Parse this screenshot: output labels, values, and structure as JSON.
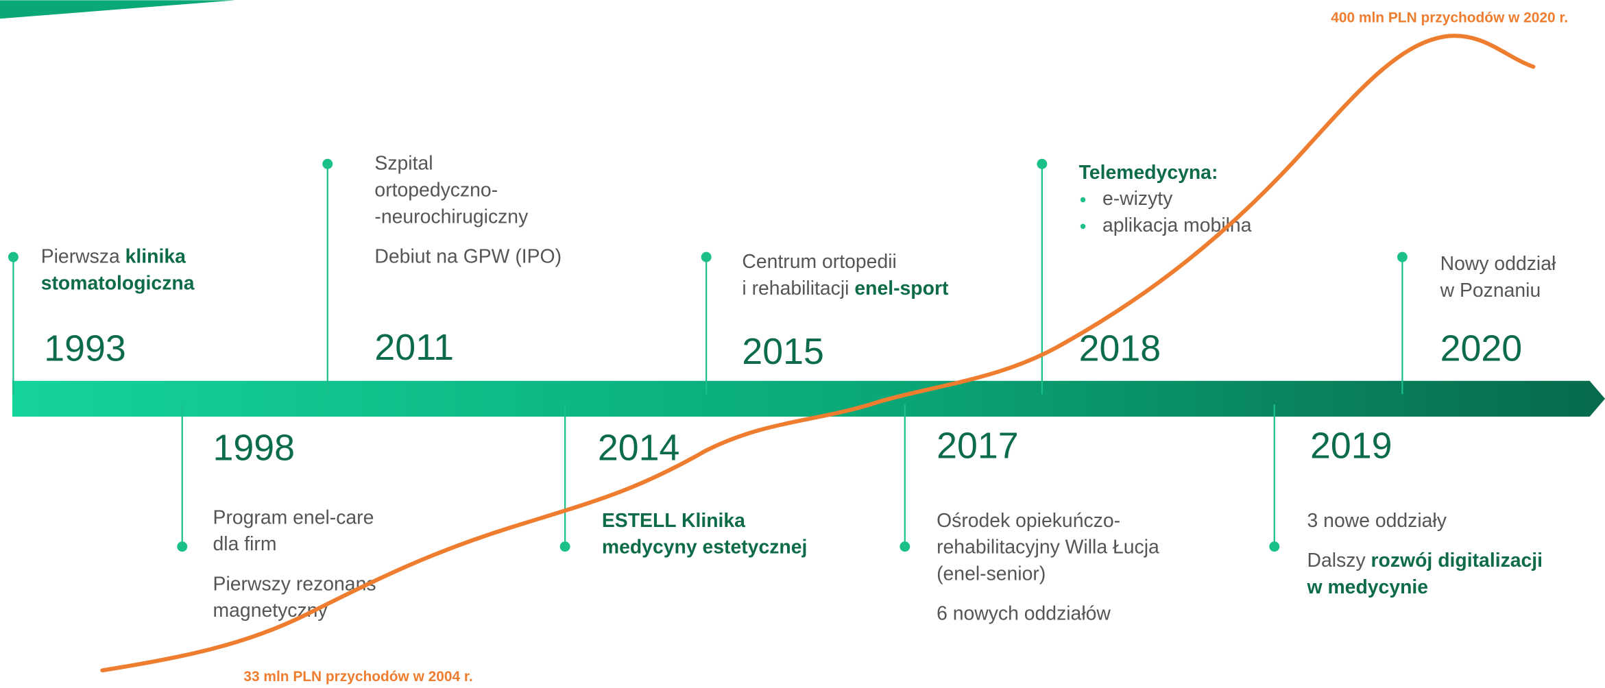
{
  "events": [
    {
      "year": "1993",
      "paragraphs": [
        [
          [
            "Pierwsza ",
            {
              "text": "klinika",
              "strong": true
            }
          ],
          [
            {
              "text": "stomatologiczna",
              "strong": true
            }
          ]
        ]
      ]
    },
    {
      "year": "1998",
      "paragraphs": [
        [
          [
            "Program enel-care"
          ],
          [
            "dla firm"
          ]
        ],
        [
          [
            "Pierwszy rezonans"
          ],
          [
            "magnetyczny"
          ]
        ]
      ]
    },
    {
      "year": "2011",
      "paragraphs": [
        [
          [
            "Szpital"
          ],
          [
            "ortopedyczno-"
          ],
          [
            "-neurochirugiczny"
          ]
        ],
        [
          [
            "Debiut na GPW (IPO)"
          ]
        ]
      ]
    },
    {
      "year": "2014",
      "paragraphs": [
        [
          [
            {
              "text": "ESTELL Klinika",
              "strong": true
            }
          ],
          [
            {
              "text": "medycyny estetycznej",
              "strong": true
            }
          ]
        ]
      ]
    },
    {
      "year": "2015",
      "paragraphs": [
        [
          [
            "Centrum ortopedii"
          ],
          [
            "i rehabilitacji ",
            {
              "text": "enel-sport",
              "strong": true
            }
          ]
        ]
      ]
    },
    {
      "year": "2017",
      "paragraphs": [
        [
          [
            "Ośrodek opiekuńczo-"
          ],
          [
            "rehabilitacyjny Willa Łucja"
          ],
          [
            "(enel-senior)"
          ]
        ],
        [
          [
            "6 nowych oddziałów"
          ]
        ]
      ]
    },
    {
      "year": "2018",
      "paragraphs": [
        [
          [
            {
              "text": "Telemedycyna:",
              "strong": true
            }
          ]
        ]
      ],
      "bullets": [
        "e-wizyty",
        "aplikacja mobilna"
      ]
    },
    {
      "year": "2019",
      "paragraphs": [
        [
          [
            "3 nowe oddziały"
          ]
        ],
        [
          [
            "Dalszy ",
            {
              "text": "rozwój digitalizacji",
              "strong": true
            }
          ],
          [
            {
              "text": "w medycynie",
              "strong": true
            }
          ]
        ]
      ]
    },
    {
      "year": "2020",
      "paragraphs": [
        [
          [
            "Nowy oddział"
          ],
          [
            "w Poznaniu"
          ]
        ]
      ]
    }
  ],
  "annotations": {
    "revenue_2020": "400 mln PLN przychodów w 2020 r.",
    "revenue_2004": "33 mln PLN przychodów w 2004 r."
  }
}
